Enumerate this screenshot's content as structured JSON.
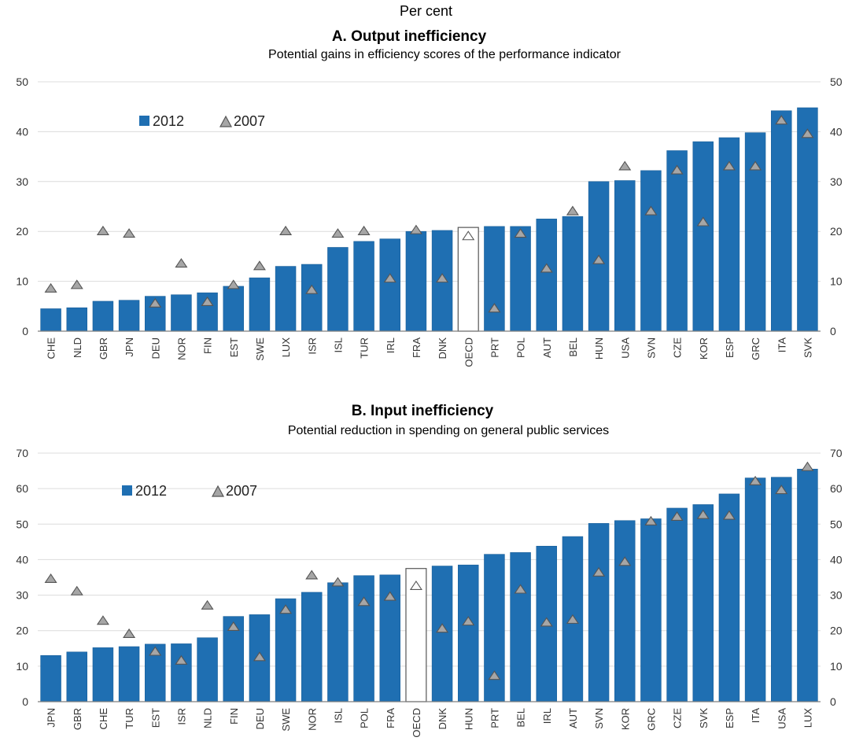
{
  "units_label": "Per cent",
  "colors": {
    "bar": "#1f6fb2",
    "bar_edge": "#1a5f99",
    "highlight_bar_fill": "#ffffff",
    "highlight_bar_edge": "#555555",
    "marker_fill": "#a6a6a6",
    "marker_edge": "#555555",
    "grid": "#dcdcdc"
  },
  "chart_data": [
    {
      "type": "bar",
      "title": "A. Output inefficiency",
      "subtitle": "Potential gains in efficiency scores of the performance indicator",
      "ylim": [
        0,
        50
      ],
      "yticks": [
        0,
        10,
        20,
        30,
        40,
        50
      ],
      "secondary_axis": true,
      "grid": true,
      "legend_position": "top-left",
      "highlight_category": "OECD",
      "categories": [
        "CHE",
        "NLD",
        "GBR",
        "JPN",
        "DEU",
        "NOR",
        "FIN",
        "EST",
        "SWE",
        "LUX",
        "ISR",
        "ISL",
        "TUR",
        "IRL",
        "FRA",
        "DNK",
        "OECD",
        "PRT",
        "POL",
        "AUT",
        "BEL",
        "HUN",
        "USA",
        "SVN",
        "CZE",
        "KOR",
        "ESP",
        "GRC",
        "ITA",
        "SVK"
      ],
      "series": [
        {
          "name": "2012",
          "kind": "bar",
          "values": [
            4.5,
            4.7,
            6,
            6.2,
            7,
            7.3,
            7.7,
            9,
            10.7,
            13,
            13.4,
            16.8,
            18,
            18.5,
            20,
            20.2,
            20.8,
            21,
            21,
            22.5,
            23,
            30,
            30.2,
            32.2,
            36.2,
            38,
            38.8,
            39.8,
            44.2,
            44.8
          ]
        },
        {
          "name": "2007",
          "kind": "marker",
          "values": [
            8.5,
            9.2,
            20,
            19.5,
            5.5,
            13.5,
            5.8,
            9.2,
            13,
            20,
            8.2,
            19.5,
            20,
            10.5,
            20.2,
            10.5,
            19,
            4.5,
            19.5,
            12.5,
            24,
            14.2,
            33,
            24,
            32.2,
            21.8,
            33,
            33,
            42.2,
            39.5
          ]
        }
      ]
    },
    {
      "type": "bar",
      "title": "B. Input inefficiency",
      "subtitle": "Potential reduction in spending on general public services",
      "ylim": [
        0,
        70
      ],
      "yticks": [
        0,
        10,
        20,
        30,
        40,
        50,
        60,
        70
      ],
      "secondary_axis": true,
      "grid": true,
      "legend_position": "top-left",
      "highlight_category": "OECD",
      "categories": [
        "JPN",
        "GBR",
        "CHE",
        "TUR",
        "EST",
        "ISR",
        "NLD",
        "FIN",
        "DEU",
        "SWE",
        "NOR",
        "ISL",
        "POL",
        "FRA",
        "OECD",
        "DNK",
        "HUN",
        "PRT",
        "BEL",
        "IRL",
        "AUT",
        "SVN",
        "KOR",
        "GRC",
        "CZE",
        "SVK",
        "ESP",
        "ITA",
        "USA",
        "LUX"
      ],
      "series": [
        {
          "name": "2012",
          "kind": "bar",
          "values": [
            13,
            14,
            15.2,
            15.5,
            16.2,
            16.3,
            18,
            24,
            24.5,
            29,
            30.8,
            33.5,
            35.5,
            35.7,
            37.5,
            38.2,
            38.5,
            41.5,
            42,
            43.8,
            46.5,
            50.2,
            51,
            51.5,
            54.5,
            55.5,
            58.5,
            63,
            63.2,
            65.5
          ]
        },
        {
          "name": "2007",
          "kind": "marker",
          "values": [
            34.5,
            31,
            22.7,
            19,
            14,
            11.5,
            27,
            21,
            12.5,
            25.8,
            35.5,
            33.5,
            28,
            29.5,
            32.5,
            20.5,
            22.5,
            7.2,
            31.5,
            22.2,
            23,
            36.3,
            39.3,
            50.7,
            52,
            52.5,
            52.3,
            62,
            59.5,
            66
          ]
        }
      ]
    }
  ]
}
